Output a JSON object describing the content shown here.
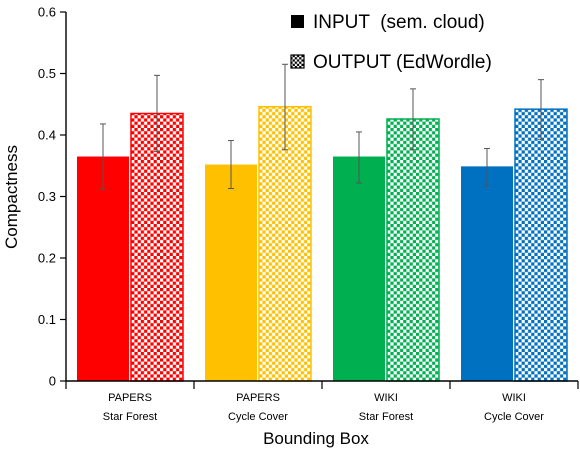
{
  "chart_data": {
    "type": "bar",
    "xlabel": "Bounding Box",
    "ylabel": "Compactness",
    "ylim": [
      0,
      0.6
    ],
    "yticks": [
      0,
      0.1,
      0.2,
      0.3,
      0.4,
      0.5,
      0.6
    ],
    "ytick_labels": [
      "0",
      "0.1",
      "0.2",
      "0.3",
      "0.4",
      "0.5",
      "0.6"
    ],
    "grid": false,
    "legend_position": "top-right",
    "categories": [
      {
        "line1": "PAPERS",
        "line2": "Star Forest",
        "color": "#ff0000"
      },
      {
        "line1": "PAPERS",
        "line2": "Cycle Cover",
        "color": "#ffc000"
      },
      {
        "line1": "WIKI",
        "line2": "Star Forest",
        "color": "#00b050"
      },
      {
        "line1": "WIKI",
        "line2": "Cycle Cover",
        "color": "#0070c0"
      }
    ],
    "series": [
      {
        "name": "INPUT  (sem. cloud)",
        "style": "solid",
        "values": [
          0.365,
          0.352,
          0.365,
          0.349
        ],
        "error_low": [
          0.312,
          0.313,
          0.322,
          0.317
        ],
        "error_high": [
          0.418,
          0.391,
          0.405,
          0.378
        ]
      },
      {
        "name": "OUTPUT (EdWordle)",
        "style": "checkered",
        "values": [
          0.435,
          0.446,
          0.426,
          0.442
        ],
        "error_low": [
          0.373,
          0.376,
          0.376,
          0.393
        ],
        "error_high": [
          0.497,
          0.515,
          0.475,
          0.49
        ]
      }
    ]
  }
}
